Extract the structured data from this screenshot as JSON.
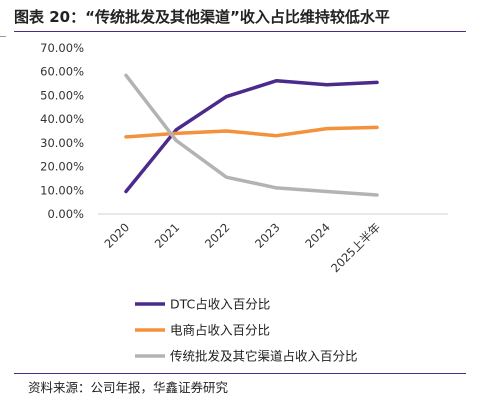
{
  "header": {
    "title": "图表 20：“传统批发及其他渠道”收入占比维持较低水平"
  },
  "footer": {
    "source": "资料来源：公司年报，华鑫证券研究"
  },
  "chart_data": {
    "type": "line",
    "title": "图表 20：“传统批发及其他渠道”收入占比维持较低水平",
    "xlabel": "",
    "ylabel": "",
    "categories": [
      "2020",
      "2021",
      "2022",
      "2023",
      "2024",
      "2025上半年"
    ],
    "ylim": [
      0,
      70
    ],
    "yticks": [
      "70.00%",
      "60.00%",
      "50.00%",
      "40.00%",
      "30.00%",
      "20.00%",
      "10.00%",
      "0.00%"
    ],
    "ytick_values": [
      70,
      60,
      50,
      40,
      30,
      20,
      10,
      0
    ],
    "grid": false,
    "legend_position": "bottom",
    "series": [
      {
        "name": "DTC占收入百分比",
        "color": "#4b2a8c",
        "values": [
          9.5,
          35.5,
          49.5,
          56.2,
          54.5,
          55.5
        ]
      },
      {
        "name": "电商占收入百分比",
        "color": "#f4913c",
        "values": [
          32.5,
          34.0,
          35.0,
          33.0,
          36.0,
          36.5
        ]
      },
      {
        "name": "传统批发及其它渠道占收入百分比",
        "color": "#b3b3b3",
        "values": [
          58.5,
          31.0,
          15.5,
          11.0,
          9.5,
          8.0
        ]
      }
    ]
  }
}
